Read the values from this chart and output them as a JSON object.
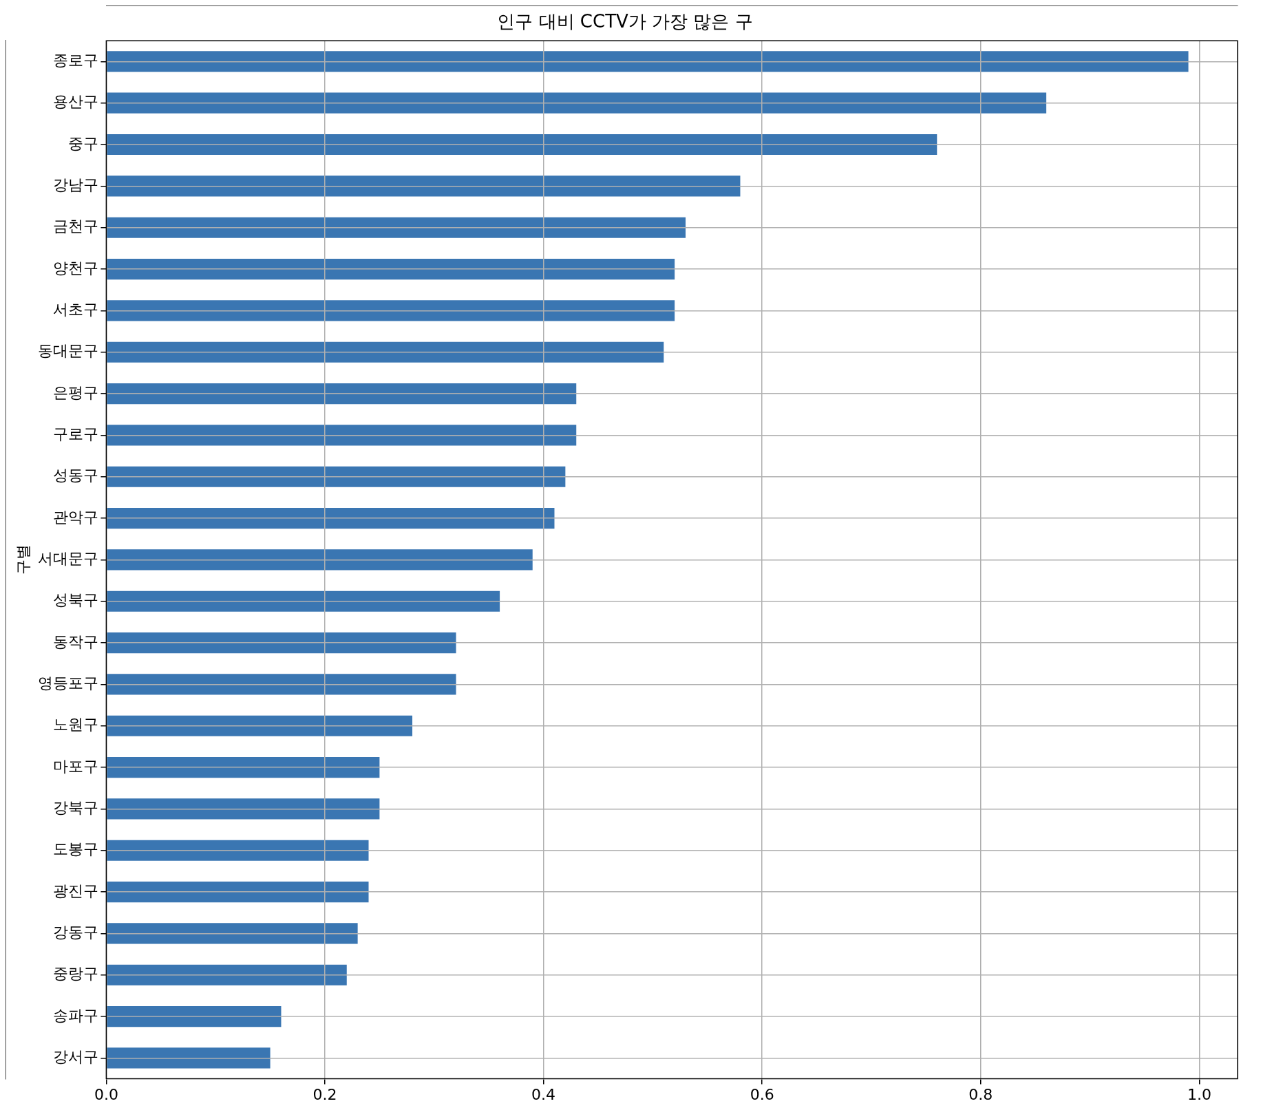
{
  "chart_data": {
    "type": "bar",
    "orientation": "horizontal",
    "title": "인구 대비 CCTV가 가장 많은 구",
    "ylabel": "구별",
    "categories": [
      "종로구",
      "용산구",
      "중구",
      "강남구",
      "금천구",
      "양천구",
      "서초구",
      "동대문구",
      "은평구",
      "구로구",
      "성동구",
      "관악구",
      "서대문구",
      "성북구",
      "동작구",
      "영등포구",
      "노원구",
      "마포구",
      "강북구",
      "도봉구",
      "광진구",
      "강동구",
      "중랑구",
      "송파구",
      "강서구"
    ],
    "values": [
      0.99,
      0.86,
      0.76,
      0.58,
      0.53,
      0.52,
      0.52,
      0.51,
      0.43,
      0.43,
      0.42,
      0.41,
      0.39,
      0.36,
      0.32,
      0.32,
      0.28,
      0.25,
      0.25,
      0.24,
      0.24,
      0.23,
      0.22,
      0.16,
      0.15
    ],
    "color": "#3a76b2",
    "xlim": [
      0,
      1.035
    ],
    "xticks": [
      {
        "value": 0,
        "label": "0.0"
      },
      0.2,
      0.4,
      0.6,
      0.8,
      {
        "value": 1,
        "label": "1.0"
      }
    ],
    "grid": true,
    "legend": false
  }
}
